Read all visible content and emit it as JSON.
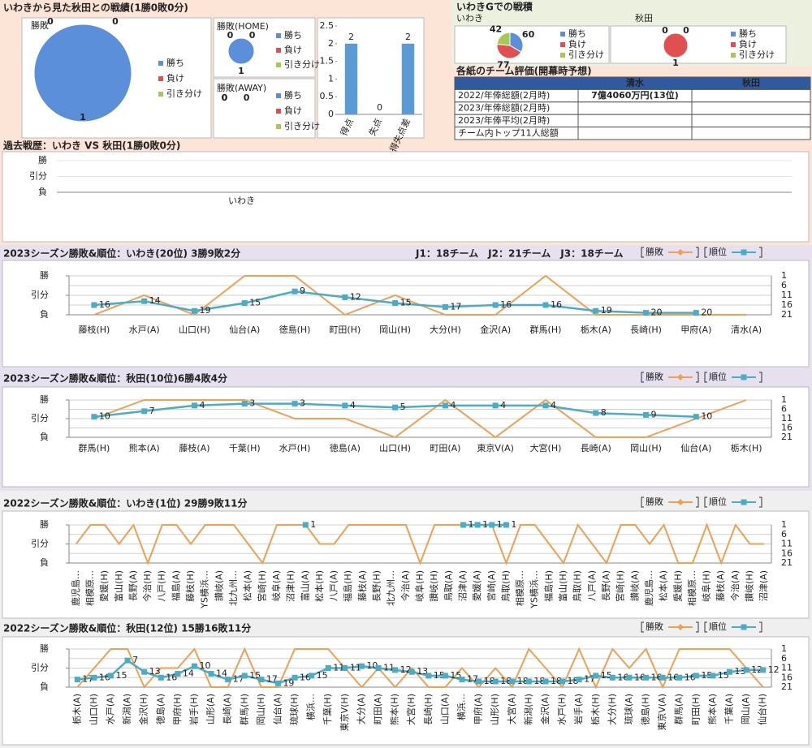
{
  "header": {
    "title": "いわきから見た秋田との戦績(1勝0敗0分)",
    "ground_title": "いわきGでの戦積",
    "table_title": "各紙のチーム評価(開幕時予想)"
  },
  "table": {
    "columns": [
      "清水",
      "秋田"
    ],
    "rows": [
      [
        "2022/年俸総額(2月時)",
        "7億4060万円(13位)"
      ],
      [
        "2023/年俸総額(2月時)"
      ],
      [
        "2023/年俸平均(2月時)"
      ],
      [
        "チーム内トップ11人総額"
      ]
    ]
  },
  "chart_data": [
    {
      "type": "pie",
      "title": "勝敗",
      "labels": [
        "勝ち",
        "負け",
        "引き分け"
      ],
      "values": [
        1,
        0,
        0
      ],
      "colors": [
        "#5b8fd9",
        "#e05050",
        "#a6c952"
      ]
    },
    {
      "type": "pie",
      "title": "勝敗(HOME)",
      "labels": [
        "勝ち",
        "負け",
        "引き分け"
      ],
      "values": [
        1,
        0,
        0
      ],
      "colors": [
        "#5b8fd9",
        "#e05050",
        "#a6c952"
      ]
    },
    {
      "type": "pie",
      "title": "勝敗(AWAY)",
      "labels": [
        "勝ち",
        "負け",
        "引き分け"
      ],
      "values": [
        0,
        0,
        0
      ],
      "colors": [
        "#5b8fd9",
        "#e05050",
        "#a6c952"
      ]
    },
    {
      "type": "bar",
      "categories": [
        "得点",
        "失点",
        "得失点差"
      ],
      "values": [
        2,
        0,
        2
      ],
      "color": "#5b9bd5",
      "ylim": [
        0,
        2.5
      ],
      "yticks": [
        0,
        0.5,
        1,
        1.5,
        2,
        2.5
      ]
    },
    {
      "type": "pie",
      "title": "いわき",
      "labels": [
        "勝ち",
        "負け",
        "引き分け"
      ],
      "values": [
        60,
        77,
        42
      ],
      "colors": [
        "#5b8fd9",
        "#e05050",
        "#a6c952"
      ]
    },
    {
      "type": "pie",
      "title": "秋田",
      "labels": [
        "勝ち",
        "負け",
        "引き分け"
      ],
      "values": [
        0,
        1,
        0
      ],
      "colors": [
        "#5b8fd9",
        "#e05050",
        "#a6c952"
      ]
    },
    {
      "type": "history",
      "title": "過去戦歴：いわき VS 秋田(1勝0敗0分)",
      "categories": [
        "いわき"
      ],
      "ylim": [
        -1,
        1
      ],
      "yticks": [
        {
          "value": 1,
          "label": "勝"
        },
        {
          "value": 0,
          "label": "引分"
        },
        {
          "value": -1,
          "label": "負"
        }
      ]
    },
    {
      "type": "season",
      "title": "2023シーズン勝敗&順位：いわき(20位) 3勝9敗2分",
      "annotation": "J1：18チーム　J2：21チーム　J3：18チーム",
      "categories": [
        "藤枝(H)",
        "水戸(A)",
        "山口(H)",
        "仙台(A)",
        "徳島(H)",
        "町田(H)",
        "岡山(H)",
        "大分(H)",
        "金沢(A)",
        "群馬(H)",
        "栃木(A)",
        "長崎(H)",
        "甲府(A)",
        "清水(A)"
      ],
      "ylim": [
        -1,
        1
      ],
      "yticks": [
        {
          "value": 1,
          "label": "勝"
        },
        {
          "value": 0,
          "label": "引分"
        },
        {
          "value": -1,
          "label": "負"
        }
      ],
      "y2lim": [
        21,
        1
      ],
      "y2ticks": [
        1,
        6,
        11,
        16,
        21
      ],
      "series": [
        {
          "name": "勝敗",
          "color": "#f0a050",
          "values": [
            -1,
            0,
            -1,
            1,
            1,
            -1,
            0,
            -1,
            -1,
            1,
            -1,
            -1,
            -1,
            -1
          ]
        },
        {
          "name": "順位",
          "color": "#4bacc6",
          "axis": "y2",
          "values": [
            16,
            14,
            19,
            15,
            9,
            12,
            15,
            17,
            16,
            16,
            19,
            20,
            20,
            null
          ]
        }
      ]
    },
    {
      "type": "season",
      "title": "2023シーズン勝敗&順位：秋田(10位)6勝4敗4分",
      "categories": [
        "群馬(H)",
        "熊本(A)",
        "藤枝(A)",
        "千葉(H)",
        "水戸(H)",
        "徳島(A)",
        "山口(H)",
        "町田(A)",
        "東京V(A)",
        "大宮(H)",
        "長崎(A)",
        "岡山(H)",
        "仙台(A)",
        "栃木(H)"
      ],
      "ylim": [
        -1,
        1
      ],
      "yticks": [
        {
          "value": 1,
          "label": "勝"
        },
        {
          "value": 0,
          "label": "引分"
        },
        {
          "value": -1,
          "label": "負"
        }
      ],
      "y2lim": [
        21,
        1
      ],
      "y2ticks": [
        1,
        6,
        11,
        16,
        21
      ],
      "series": [
        {
          "name": "勝敗",
          "color": "#f0a050",
          "values": [
            0,
            1,
            1,
            1,
            0,
            0,
            -1,
            1,
            -1,
            1,
            -1,
            -1,
            0,
            1
          ]
        },
        {
          "name": "順位",
          "color": "#4bacc6",
          "axis": "y2",
          "values": [
            10,
            7,
            4,
            3,
            3,
            4,
            5,
            4,
            4,
            4,
            8,
            9,
            10,
            null
          ]
        }
      ]
    },
    {
      "type": "season",
      "title": "2022シーズン勝敗&順位：いわき(1位) 29勝9敗11分",
      "rotate_labels": true,
      "categories": [
        "鹿児島…",
        "相模原…",
        "愛媛(H)",
        "富山(H)",
        "長野(A)",
        "今治(H)",
        "八戸(H)",
        "福島(A)",
        "藤枝(H)",
        "YS横浜…",
        "讃岐(A)",
        "北九州…",
        "松本(A)",
        "宮崎(H)",
        "岐阜(A)",
        "沼津(H)",
        "富山(A)",
        "松本(H)",
        "八戸(A)",
        "福島(H)",
        "藤枝(A)",
        "長野(H)",
        "北九州…",
        "今治(A)",
        "岐阜(H)",
        "讃岐(H)",
        "鳥取(A)",
        "沼津(A)",
        "愛媛(A)",
        "宮崎(A)",
        "鳥取(H)",
        "相模原…",
        "YS横浜…",
        "福島(H)",
        "富山(H)",
        "鳥取(H)",
        "八戸(A)",
        "長野(A)",
        "宮崎(H)",
        "讃岐(A)",
        "鹿児島…",
        "松本(A)",
        "愛媛(H)",
        "相模原…",
        "岐阜(H)",
        "藤枝(A)",
        "今治(A)",
        "讃岐(H)",
        "沼津(A)"
      ],
      "ylim": [
        -1,
        1
      ],
      "yticks": [
        {
          "value": 1,
          "label": "勝"
        },
        {
          "value": 0,
          "label": "引分"
        },
        {
          "value": -1,
          "label": "負"
        }
      ],
      "y2lim": [
        21,
        1
      ],
      "y2ticks": [
        1,
        6,
        11,
        16,
        21
      ],
      "series": [
        {
          "name": "勝敗",
          "color": "#f0a050",
          "values": [
            0,
            1,
            1,
            0,
            1,
            -1,
            1,
            1,
            0,
            1,
            1,
            1,
            0,
            -1,
            1,
            1,
            1,
            0,
            0,
            1,
            1,
            1,
            1,
            1,
            -1,
            1,
            1,
            1,
            1,
            1,
            -1,
            1,
            1,
            0,
            -1,
            1,
            0,
            -1,
            1,
            1,
            0,
            1,
            -1,
            -1,
            1,
            -1,
            1,
            0,
            0
          ]
        },
        {
          "name": "順位",
          "color": "#4bacc6",
          "axis": "y2",
          "values": [
            null,
            null,
            null,
            null,
            null,
            null,
            null,
            null,
            null,
            null,
            null,
            null,
            null,
            null,
            null,
            null,
            1,
            null,
            null,
            null,
            null,
            null,
            null,
            null,
            null,
            null,
            null,
            1,
            1,
            1,
            1,
            null,
            null,
            null,
            null,
            null,
            null,
            null,
            null,
            null,
            null,
            null,
            null,
            null,
            null,
            null,
            null,
            null,
            null
          ]
        }
      ]
    },
    {
      "type": "season",
      "title": "2022シーズン勝敗&順位：秋田(12位) 15勝16敗11分",
      "rotate_labels": true,
      "categories": [
        "栃木(A)",
        "山口(H)",
        "水戸(A)",
        "新潟(A)",
        "金沢(H)",
        "徳島(A)",
        "甲府(H)",
        "岩手(H)",
        "山形(A)",
        "長崎(A)",
        "群馬(H)",
        "岡山(H)",
        "仙台(A)",
        "琉球(H)",
        "横浜…",
        "千葉(H)",
        "東京V(H)",
        "大分(A)",
        "町田(A)",
        "熊本(H)",
        "大宮(H)",
        "長崎(H)",
        "山口(A)",
        "横浜…",
        "甲府(A)",
        "山形(H)",
        "大宮(A)",
        "新潟(H)",
        "金沢(A)",
        "水戸(H)",
        "岩手(A)",
        "栃木(H)",
        "大分(H)",
        "琉球(A)",
        "徳島(H)",
        "東京V(A)",
        "群馬(A)",
        "町田(H)",
        "熊本(A)",
        "千葉(A)",
        "岡山(A)",
        "仙台(H)"
      ],
      "ylim": [
        -1,
        1
      ],
      "yticks": [
        {
          "value": 1,
          "label": "勝"
        },
        {
          "value": 0,
          "label": "引分"
        },
        {
          "value": -1,
          "label": "負"
        }
      ],
      "y2lim": [
        21,
        1
      ],
      "y2ticks": [
        1,
        6,
        11,
        16,
        21
      ],
      "series": [
        {
          "name": "勝敗",
          "color": "#f0a050",
          "values": [
            -1,
            0,
            1,
            1,
            -1,
            0,
            0,
            1,
            -1,
            -1,
            1,
            -1,
            -1,
            1,
            1,
            1,
            0,
            -1,
            0,
            -1,
            0,
            -1,
            -1,
            0,
            -1,
            0,
            -1,
            1,
            0,
            -1,
            1,
            -1,
            1,
            0,
            1,
            -1,
            1,
            1,
            1,
            1,
            0,
            -1
          ]
        },
        {
          "name": "順位",
          "color": "#4bacc6",
          "axis": "y2",
          "values": [
            17,
            16,
            15,
            7,
            13,
            16,
            14,
            10,
            14,
            17,
            15,
            17,
            19,
            16,
            15,
            11,
            11,
            10,
            11,
            12,
            13,
            15,
            15,
            17,
            18,
            18,
            18,
            18,
            18,
            18,
            17,
            15,
            16,
            16,
            16,
            16,
            16,
            15,
            15,
            13,
            12,
            12
          ]
        }
      ]
    }
  ]
}
